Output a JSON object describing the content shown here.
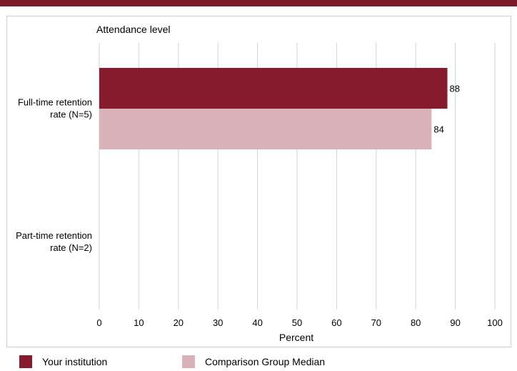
{
  "chart_data": {
    "type": "bar",
    "orientation": "horizontal",
    "title": "Attendance level",
    "xlabel": "Percent",
    "categories": [
      [
        "Full-time retention",
        "rate (N=5)"
      ],
      [
        "Part-time retention",
        "rate (N=2)"
      ]
    ],
    "series": [
      {
        "name": "Your institution",
        "color": "#871b2e",
        "values": [
          88,
          null
        ]
      },
      {
        "name": "Comparison Group Median",
        "color": "#d9b1b8",
        "values": [
          84,
          null
        ]
      }
    ],
    "xlim": [
      0,
      100
    ],
    "xticks": [
      0,
      10,
      20,
      30,
      40,
      50,
      60,
      70,
      80,
      90,
      100
    ],
    "grid": true,
    "legend_position": "bottom"
  },
  "colors": {
    "accent": "#7d1a2a",
    "grid": "#d3d3d3"
  }
}
